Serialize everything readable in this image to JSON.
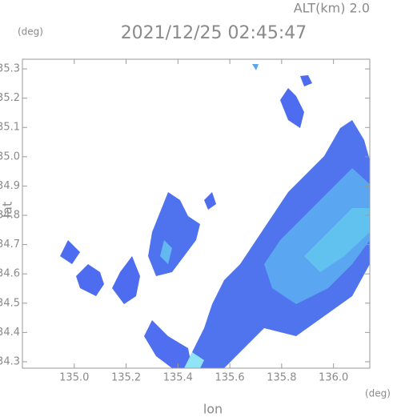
{
  "chart_data": {
    "type": "radar",
    "title": "2021/12/25 02:45:47",
    "subtitle": "ALT(km) 2.0",
    "x_label": "lon",
    "y_label": "lat",
    "x_unit": "(deg)",
    "y_unit": "(deg)",
    "xlim": [
      134.8,
      136.14
    ],
    "ylim": [
      34.278,
      35.333
    ],
    "xticks": [
      {
        "value": 135,
        "label": "135.0"
      },
      135.2,
      135.4,
      135.6,
      135.8,
      {
        "value": 136,
        "label": "136.0"
      }
    ],
    "yticks": [
      34.3,
      34.4,
      34.5,
      34.6,
      34.7,
      34.8,
      34.9,
      {
        "value": 35,
        "label": "35.0"
      },
      35.1,
      35.2,
      35.3
    ]
  }
}
